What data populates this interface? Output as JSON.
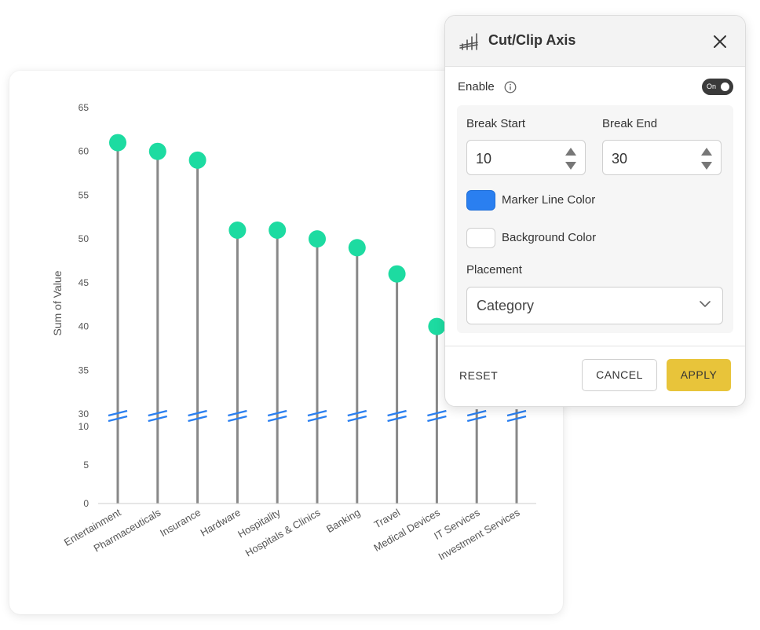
{
  "chart_data": {
    "type": "lollipop",
    "categories": [
      "Entertainment",
      "Pharmaceuticals",
      "Insurance",
      "Hardware",
      "Hospitality",
      "Hospitals & Clinics",
      "Banking",
      "Travel",
      "Medical Devices",
      "IT Services",
      "Investment Services"
    ],
    "values": [
      61,
      60,
      59,
      51,
      51,
      50,
      49,
      46,
      40,
      null,
      null
    ],
    "ylabel": "Sum of Value",
    "xlabel": "",
    "y_ticks_lower": [
      0,
      5,
      10
    ],
    "y_ticks_upper": [
      30,
      35,
      40,
      45,
      50,
      55,
      60,
      65
    ],
    "axis_break": {
      "start": 10,
      "end": 30
    },
    "ylim": [
      0,
      65
    ],
    "grid": false,
    "colors": {
      "marker": "#1ddba1",
      "stem": "#888888",
      "break_marker": "#2a7ff0"
    }
  },
  "panel": {
    "title": "Cut/Clip Axis",
    "enable_label": "Enable",
    "toggle_label": "On",
    "toggle_on": true,
    "break_start_label": "Break Start",
    "break_start_value": "10",
    "break_end_label": "Break End",
    "break_end_value": "30",
    "marker_line_color_label": "Marker Line Color",
    "marker_line_color": "#2a7ff0",
    "background_color_label": "Background Color",
    "background_color": "#ffffff",
    "placement_label": "Placement",
    "placement_value": "Category",
    "reset_label": "RESET",
    "cancel_label": "CANCEL",
    "apply_label": "APPLY",
    "apply_color": "#e8c43a"
  }
}
